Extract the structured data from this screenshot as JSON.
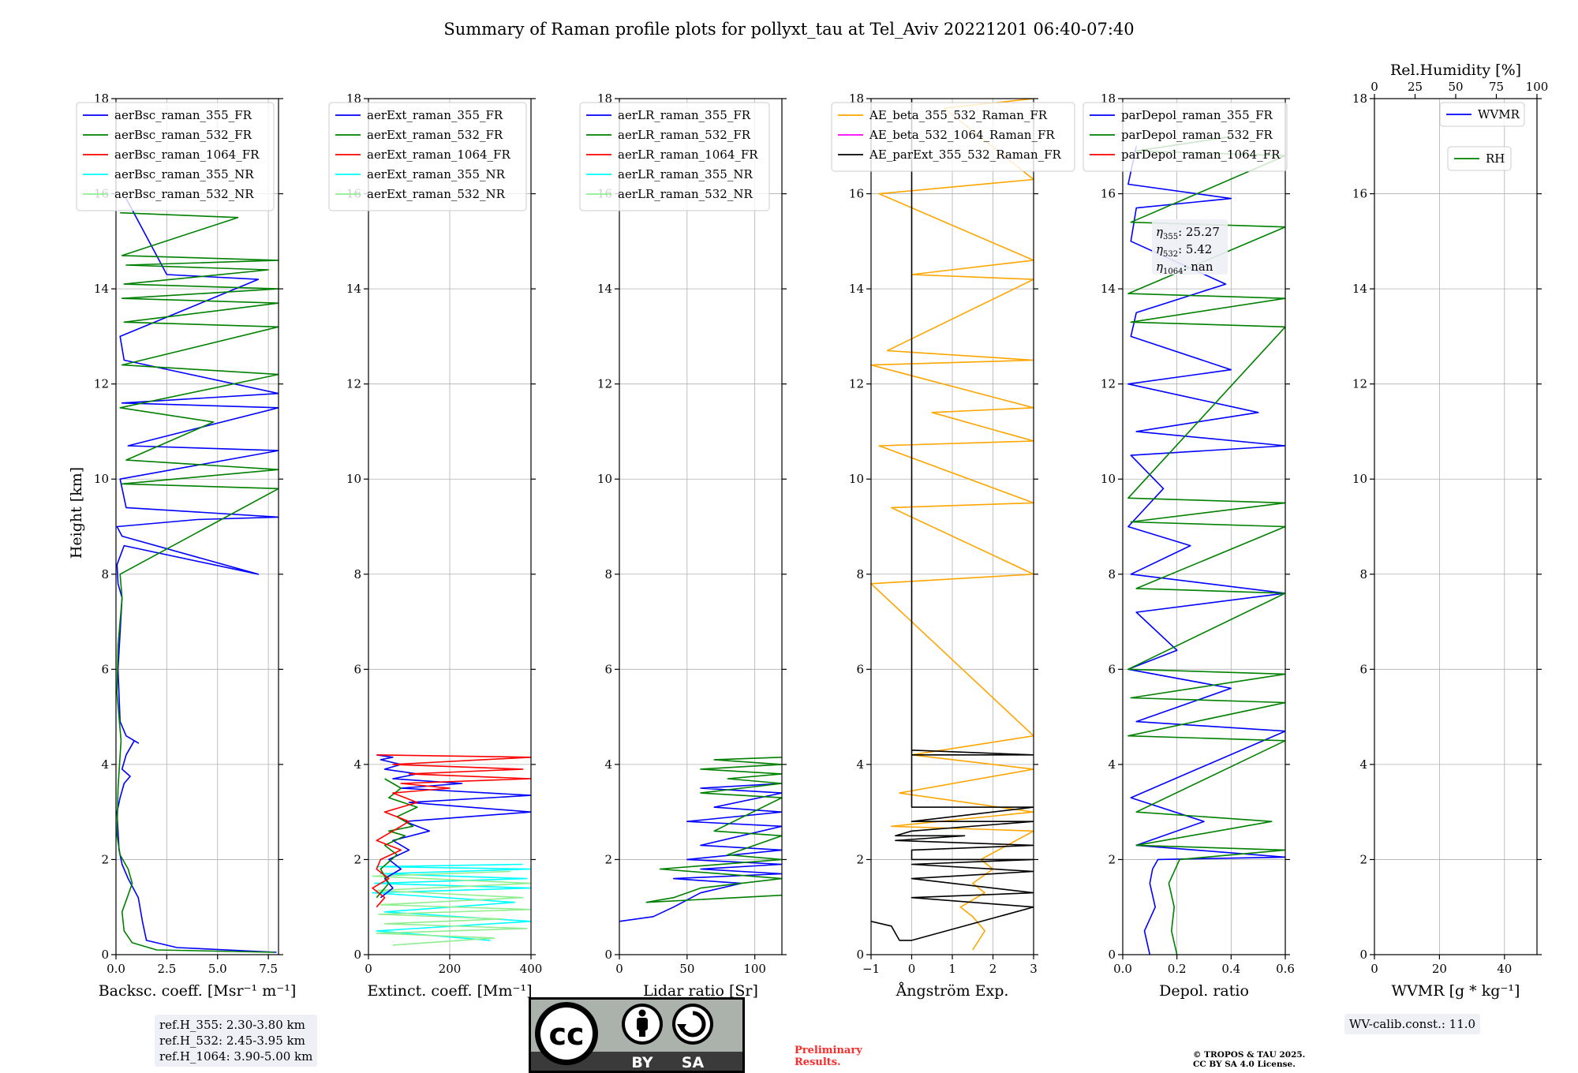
{
  "figure_title": "Summary of Raman profile plots for pollyxt_tau at Tel_Aviv 20221201 06:40-07:40",
  "colors": {
    "c355": "#0000ff",
    "c532": "#008000",
    "c1064": "#ff0000",
    "c355nr": "#00ffff",
    "c532nr": "#90ee90",
    "ae1": "#ffa500",
    "ae2": "#ff00ff",
    "ae3": "#000000"
  },
  "chart_data": [
    {
      "type": "line",
      "id": "bsc",
      "xlabel": "Backsc. coeff. [Msr⁻¹ m⁻¹]",
      "ylabel": "Height [km]",
      "xlim": [
        0,
        8
      ],
      "ylim": [
        0,
        18
      ],
      "xticks": [
        0,
        2.5,
        5,
        7.5
      ],
      "xticklabels": [
        "0.0",
        "2.5",
        "5.0",
        "7.5"
      ],
      "yticks": [
        0,
        2,
        4,
        6,
        8,
        10,
        12,
        14,
        16,
        18
      ],
      "legend": [
        "aerBsc_raman_355_FR",
        "aerBsc_raman_532_FR",
        "aerBsc_raman_1064_FR",
        "aerBsc_raman_355_NR",
        "aerBsc_raman_532_NR"
      ],
      "legend_loc": "top-left",
      "series": [
        {
          "name": "aerBsc_raman_355_FR",
          "color": "#0000ff",
          "x": [
            7.9,
            3.0,
            1.5,
            1.3,
            1.1,
            0.6,
            0.3,
            0.15,
            0.05,
            0.2,
            0.4,
            0.7,
            0.3,
            0.5,
            0.9,
            1.1,
            0.5,
            0.2,
            0.1,
            0.3,
            0.1,
            0.05,
            0.4,
            7.0,
            0.3,
            0.05,
            4.0,
            8.0,
            0.5,
            0.2,
            8.0,
            0.6,
            8.0,
            0.3,
            8.0,
            0.4,
            0.2,
            7.0,
            2.5,
            0.5
          ],
          "y": [
            0.05,
            0.15,
            0.3,
            0.7,
            1.2,
            1.6,
            1.9,
            2.2,
            3.0,
            3.3,
            3.6,
            3.75,
            3.9,
            4.2,
            4.5,
            4.45,
            4.6,
            4.9,
            6.0,
            7.5,
            7.8,
            8.2,
            8.6,
            8.0,
            8.8,
            9.0,
            9.15,
            9.2,
            9.4,
            10.0,
            10.6,
            10.7,
            11.5,
            11.6,
            11.8,
            12.5,
            13.0,
            14.2,
            14.3,
            15.9
          ]
        },
        {
          "name": "aerBsc_raman_532_FR",
          "color": "#008000",
          "x": [
            7.8,
            2.0,
            0.8,
            0.4,
            0.3,
            0.55,
            0.8,
            0.6,
            0.2,
            0.05,
            0.1,
            0.25,
            0.05,
            0.1,
            0.3,
            0.2,
            8.0,
            0.3,
            8.0,
            0.5,
            4.8,
            0.2,
            8.0,
            0.3,
            8.0,
            0.4,
            8.0,
            0.3,
            8.0,
            0.4,
            7.5,
            0.5,
            8.0,
            0.3,
            6.0,
            0.2
          ],
          "y": [
            0.05,
            0.1,
            0.25,
            0.5,
            0.9,
            1.2,
            1.5,
            1.8,
            2.1,
            2.5,
            3.5,
            4.5,
            5.5,
            6.5,
            7.5,
            8.0,
            9.8,
            9.9,
            10.2,
            10.4,
            11.2,
            11.5,
            12.2,
            12.4,
            13.2,
            13.3,
            13.7,
            13.8,
            14.0,
            14.1,
            14.4,
            14.5,
            14.6,
            14.7,
            15.5,
            15.6
          ]
        }
      ]
    },
    {
      "type": "line",
      "id": "ext",
      "xlabel": "Extinct. coeff. [Mm⁻¹]",
      "xlim": [
        0,
        400
      ],
      "ylim": [
        0,
        18
      ],
      "xticks": [
        0,
        200,
        400
      ],
      "xticklabels": [
        "0",
        "200",
        "400"
      ],
      "yticks": [
        0,
        2,
        4,
        6,
        8,
        10,
        12,
        14,
        16,
        18
      ],
      "legend": [
        "aerExt_raman_355_FR",
        "aerExt_raman_532_FR",
        "aerExt_raman_1064_FR",
        "aerExt_raman_355_NR",
        "aerExt_raman_532_NR"
      ],
      "legend_loc": "top-left",
      "series": [
        {
          "name": "aerExt_raman_355_NR",
          "color": "#00ffff",
          "x": [
            380,
            20,
            400,
            30,
            390,
            15,
            400,
            10,
            360,
            40,
            400,
            20,
            300
          ],
          "y": [
            1.9,
            1.85,
            1.8,
            1.7,
            1.6,
            1.5,
            1.4,
            1.3,
            1.1,
            0.9,
            0.7,
            0.5,
            0.3
          ]
        },
        {
          "name": "aerExt_raman_532_NR",
          "color": "#90ee90",
          "x": [
            350,
            10,
            400,
            20,
            380,
            30,
            400,
            25,
            330,
            40,
            390,
            20,
            310,
            60
          ],
          "y": [
            1.75,
            1.65,
            1.5,
            1.35,
            1.2,
            1.05,
            0.95,
            0.85,
            0.75,
            0.65,
            0.55,
            0.45,
            0.35,
            0.2
          ]
        },
        {
          "name": "aerExt_raman_355_FR",
          "color": "#0000ff",
          "x": [
            30,
            60,
            40,
            80,
            50,
            100,
            60,
            150,
            90,
            400,
            100,
            400,
            80,
            230,
            60,
            120,
            40,
            80,
            30,
            60,
            20
          ],
          "y": [
            1.2,
            1.4,
            1.6,
            1.8,
            2.0,
            2.2,
            2.4,
            2.6,
            2.8,
            3.0,
            3.2,
            3.35,
            3.5,
            3.6,
            3.7,
            3.8,
            3.9,
            4.0,
            4.1,
            4.15,
            4.2
          ]
        },
        {
          "name": "aerExt_raman_532_FR",
          "color": "#008000",
          "x": [
            20,
            50,
            30,
            70,
            40,
            90,
            50,
            110,
            70,
            120,
            50,
            80,
            40
          ],
          "y": [
            1.2,
            1.5,
            1.8,
            2.1,
            2.3,
            2.5,
            2.6,
            2.7,
            2.9,
            3.1,
            3.3,
            3.5,
            3.7
          ]
        },
        {
          "name": "aerExt_raman_1064_FR",
          "color": "#ff0000",
          "x": [
            20,
            40,
            10,
            50,
            20,
            30,
            80,
            20,
            60,
            100,
            40,
            120,
            60,
            200,
            80,
            400,
            100,
            380,
            60,
            400,
            20
          ],
          "y": [
            1.0,
            1.2,
            1.4,
            1.6,
            1.8,
            2.0,
            2.2,
            2.4,
            2.6,
            2.8,
            3.0,
            3.2,
            3.4,
            3.5,
            3.6,
            3.7,
            3.8,
            3.9,
            4.0,
            4.15,
            4.2
          ]
        }
      ]
    },
    {
      "type": "line",
      "id": "lr",
      "xlabel": "Lidar ratio [Sr]",
      "xlim": [
        0,
        120
      ],
      "ylim": [
        0,
        18
      ],
      "xticks": [
        0,
        50,
        100
      ],
      "xticklabels": [
        "0",
        "50",
        "100"
      ],
      "yticks": [
        0,
        2,
        4,
        6,
        8,
        10,
        12,
        14,
        16,
        18
      ],
      "legend": [
        "aerLR_raman_355_FR",
        "aerLR_raman_532_FR",
        "aerLR_raman_1064_FR",
        "aerLR_raman_355_NR",
        "aerLR_raman_532_NR"
      ],
      "legend_loc": "top-left",
      "series": [
        {
          "name": "aerLR_raman_355_FR",
          "color": "#0000ff",
          "x": [
            0,
            25,
            40,
            60,
            90,
            40,
            120,
            60,
            120,
            50,
            120,
            60,
            120,
            50,
            120,
            70,
            120,
            60,
            120
          ],
          "y": [
            0.7,
            0.8,
            1.0,
            1.3,
            1.5,
            1.6,
            1.7,
            1.8,
            1.9,
            2.0,
            2.2,
            2.3,
            2.7,
            2.8,
            3.0,
            3.1,
            3.4,
            3.5,
            3.6
          ]
        },
        {
          "name": "aerLR_raman_532_FR",
          "color": "#008000",
          "x": [
            120,
            20,
            40,
            60,
            120,
            30,
            120,
            80,
            120,
            70,
            120,
            60,
            120,
            80,
            120,
            60,
            120,
            70,
            120
          ],
          "y": [
            1.25,
            1.1,
            1.2,
            1.4,
            1.6,
            1.8,
            2.0,
            2.1,
            2.5,
            2.6,
            3.3,
            3.4,
            3.6,
            3.7,
            3.8,
            3.9,
            4.0,
            4.1,
            4.15
          ]
        }
      ]
    },
    {
      "type": "line",
      "id": "ae",
      "xlabel": "Ångström Exp.",
      "xlim": [
        -1,
        3
      ],
      "ylim": [
        0,
        18
      ],
      "xticks": [
        -1,
        0,
        1,
        2,
        3
      ],
      "xticklabels": [
        "−1",
        "0",
        "1",
        "2",
        "3"
      ],
      "yticks": [
        0,
        2,
        4,
        6,
        8,
        10,
        12,
        14,
        16,
        18
      ],
      "legend": [
        "AE_beta_355_532_Raman_FR",
        "AE_beta_532_1064_Raman_FR",
        "AE_parExt_355_532_Raman_FR"
      ],
      "legend_loc": "top-left",
      "series": [
        {
          "name": "AE_beta_355_532_Raman_FR",
          "color": "#ffa500",
          "x": [
            1.5,
            1.8,
            1.5,
            1.2,
            1.8,
            1.5,
            2.0,
            1.7,
            3.0,
            -0.5,
            3.0,
            -0.3,
            3.0,
            0.0,
            3.0,
            -1.0,
            3.0,
            -0.5,
            3.0,
            -0.8,
            3.0,
            0.5,
            3.0,
            -1.0,
            3.0,
            -0.6,
            3.0,
            0.0,
            3.0,
            -0.8,
            3.0,
            0.8,
            3.0
          ],
          "y": [
            0.1,
            0.5,
            0.8,
            1.0,
            1.3,
            1.5,
            1.8,
            2.0,
            2.6,
            2.7,
            3.0,
            3.4,
            3.9,
            4.2,
            4.6,
            7.8,
            8.0,
            9.4,
            9.5,
            10.7,
            10.8,
            11.4,
            11.5,
            12.4,
            12.5,
            12.7,
            14.2,
            14.3,
            14.6,
            16.0,
            16.3,
            17.8,
            18.0
          ]
        },
        {
          "name": "AE_parExt_355_532_Raman_FR",
          "color": "#000000",
          "x": [
            -1.0,
            -0.5,
            -0.3,
            0.0,
            3.0,
            0.0,
            3.0,
            0.0,
            3.0,
            0.0,
            3.0,
            0.0,
            0.0,
            3.0,
            -0.4,
            1.3,
            -0.4,
            0.0,
            3.0,
            0.0,
            3.0,
            0.0,
            0.0,
            3.0,
            0.0,
            0.0
          ],
          "y": [
            0.7,
            0.6,
            0.3,
            0.3,
            1.0,
            1.2,
            1.3,
            1.6,
            1.75,
            1.9,
            2.0,
            2.0,
            2.2,
            2.3,
            2.4,
            2.5,
            2.5,
            2.6,
            2.8,
            2.8,
            3.1,
            3.1,
            4.3,
            4.2,
            4.2,
            18.0
          ]
        }
      ]
    },
    {
      "type": "line",
      "id": "depol",
      "xlabel": "Depol. ratio",
      "xlim": [
        0,
        0.6
      ],
      "ylim": [
        0,
        18
      ],
      "xticks": [
        0,
        0.2,
        0.4,
        0.6
      ],
      "xticklabels": [
        "0.0",
        "0.2",
        "0.4",
        "0.6"
      ],
      "yticks": [
        0,
        2,
        4,
        6,
        8,
        10,
        12,
        14,
        16,
        18
      ],
      "legend": [
        "parDepol_raman_355_FR",
        "parDepol_raman_532_FR",
        "parDepol_raman_1064_FR"
      ],
      "legend_loc": "top-left",
      "annotation": {
        "eta355": "25.27",
        "eta532": "5.42",
        "eta1064": "nan"
      },
      "series": [
        {
          "name": "parDepol_raman_355_FR",
          "color": "#0000ff",
          "x": [
            0.1,
            0.08,
            0.12,
            0.1,
            0.11,
            0.13,
            0.6,
            0.05,
            0.3,
            0.03,
            0.6,
            0.05,
            0.4,
            0.02,
            0.2,
            0.05,
            0.6,
            0.03,
            0.25,
            0.02,
            0.15,
            0.03,
            0.6,
            0.05,
            0.5,
            0.02,
            0.4,
            0.03,
            0.05,
            0.38,
            0.03,
            0.05,
            0.4,
            0.02,
            0.05
          ],
          "y": [
            0.0,
            0.5,
            1.0,
            1.5,
            1.8,
            2.0,
            2.05,
            2.3,
            2.8,
            3.3,
            4.7,
            4.9,
            5.6,
            6.0,
            6.4,
            7.2,
            7.6,
            8.0,
            8.6,
            9.0,
            9.8,
            10.5,
            10.7,
            11.0,
            11.4,
            12.0,
            12.3,
            13.0,
            13.5,
            14.1,
            15.0,
            15.7,
            15.9,
            16.2,
            17.0
          ]
        },
        {
          "name": "parDepol_raman_532_FR",
          "color": "#008000",
          "x": [
            0.2,
            0.18,
            0.19,
            0.17,
            0.21,
            0.6,
            0.05,
            0.55,
            0.05,
            0.6,
            0.02,
            0.6,
            0.03,
            0.6,
            0.02,
            0.6,
            0.05,
            0.6,
            0.03,
            0.6,
            0.02,
            0.6,
            0.03,
            0.6,
            0.02,
            0.6,
            0.03,
            0.6,
            0.05,
            0.4
          ],
          "y": [
            0.0,
            0.5,
            1.0,
            1.5,
            2.0,
            2.2,
            2.3,
            2.8,
            3.0,
            4.5,
            4.6,
            5.3,
            5.4,
            5.9,
            6.0,
            7.6,
            7.7,
            9.0,
            9.1,
            9.5,
            9.6,
            13.2,
            13.3,
            13.8,
            13.9,
            15.3,
            15.4,
            16.8,
            16.9,
            17.2
          ]
        }
      ]
    },
    {
      "type": "line",
      "id": "wv",
      "xlabel": "WVMR [g * kg⁻¹]",
      "xlim": [
        0,
        50
      ],
      "ylim": [
        0,
        18
      ],
      "xticks": [
        0,
        20,
        40
      ],
      "xticklabels": [
        "0",
        "20",
        "40"
      ],
      "yticks": [
        0,
        2,
        4,
        6,
        8,
        10,
        12,
        14,
        16,
        18
      ],
      "top_axis": {
        "label": "Rel.Humidity [%]",
        "lim": [
          0,
          100
        ],
        "ticks": [
          0,
          25,
          50,
          75,
          100
        ],
        "ticklabels": [
          "0",
          "25",
          "50",
          "75",
          "100"
        ]
      },
      "legend": [
        "WVMR",
        "RH"
      ],
      "legend_loc": "top-right",
      "series": []
    }
  ],
  "info": {
    "ref_h_355": "ref.H_355: 2.30-3.80 km",
    "ref_h_532": "ref.H_532: 2.45-3.95 km",
    "ref_h_1064": "ref.H_1064: 3.90-5.00 km",
    "wv_calib": "WV-calib.const.: 11.0",
    "preliminary_1": "Preliminary",
    "preliminary_2": "Results.",
    "copyright_1": "© TROPOS & TAU 2025.",
    "copyright_2": "CC BY SA 4.0 License.",
    "cc": "cc",
    "by": "BY",
    "sa": "SA"
  }
}
